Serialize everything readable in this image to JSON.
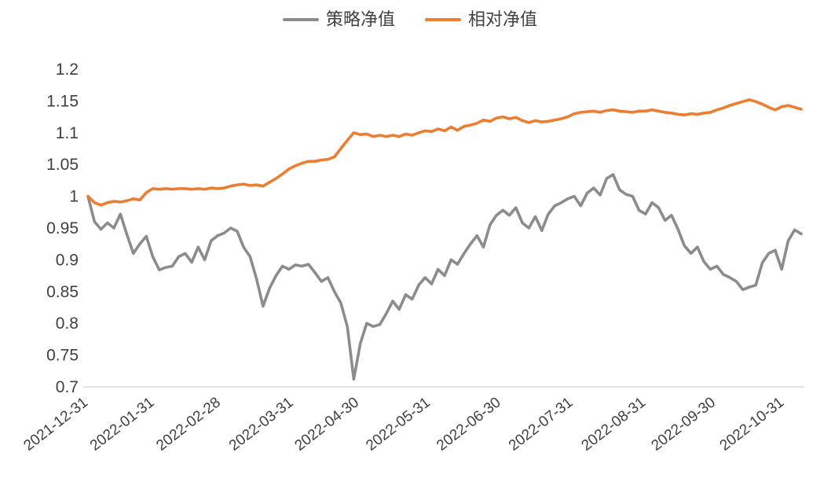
{
  "chart_data": {
    "type": "line",
    "title": "",
    "xlabel": "",
    "ylabel": "",
    "grid": false,
    "legend_position": "top-center",
    "ylim": [
      0.7,
      1.2
    ],
    "y_ticks": [
      {
        "value": 1.2,
        "label": "1.2"
      },
      {
        "value": 1.15,
        "label": "1.15"
      },
      {
        "value": 1.1,
        "label": "1.1"
      },
      {
        "value": 1.05,
        "label": "1.05"
      },
      {
        "value": 1.0,
        "label": "1"
      },
      {
        "value": 0.95,
        "label": "0.95"
      },
      {
        "value": 0.9,
        "label": "0.9"
      },
      {
        "value": 0.85,
        "label": "0.85"
      },
      {
        "value": 0.8,
        "label": "0.8"
      },
      {
        "value": 0.75,
        "label": "0.75"
      },
      {
        "value": 0.7,
        "label": "0.7"
      }
    ],
    "x_ticks": [
      {
        "pos": 0.001,
        "label": "2021-12-31"
      },
      {
        "pos": 0.094,
        "label": "2022-01-31"
      },
      {
        "pos": 0.187,
        "label": "2022-02-28"
      },
      {
        "pos": 0.289,
        "label": "2022-03-31"
      },
      {
        "pos": 0.381,
        "label": "2022-04-30"
      },
      {
        "pos": 0.481,
        "label": "2022-05-31"
      },
      {
        "pos": 0.58,
        "label": "2022-06-30"
      },
      {
        "pos": 0.681,
        "label": "2022-07-31"
      },
      {
        "pos": 0.783,
        "label": "2022-08-31"
      },
      {
        "pos": 0.881,
        "label": "2022-09-30"
      },
      {
        "pos": 0.977,
        "label": "2022-10-31"
      }
    ],
    "series": [
      {
        "name": "策略净值",
        "key": "strategy-nav",
        "color": "#8c8c8c",
        "values": [
          1.0,
          0.96,
          0.948,
          0.958,
          0.95,
          0.972,
          0.94,
          0.91,
          0.925,
          0.937,
          0.905,
          0.884,
          0.888,
          0.89,
          0.905,
          0.91,
          0.896,
          0.92,
          0.9,
          0.93,
          0.938,
          0.942,
          0.95,
          0.945,
          0.92,
          0.905,
          0.87,
          0.827,
          0.855,
          0.875,
          0.89,
          0.885,
          0.892,
          0.89,
          0.893,
          0.88,
          0.866,
          0.872,
          0.85,
          0.832,
          0.795,
          0.712,
          0.768,
          0.8,
          0.795,
          0.798,
          0.815,
          0.835,
          0.822,
          0.845,
          0.838,
          0.86,
          0.872,
          0.862,
          0.885,
          0.875,
          0.9,
          0.893,
          0.91,
          0.925,
          0.938,
          0.92,
          0.955,
          0.97,
          0.978,
          0.97,
          0.982,
          0.958,
          0.95,
          0.968,
          0.946,
          0.972,
          0.985,
          0.99,
          0.996,
          1.0,
          0.985,
          1.005,
          1.013,
          1.002,
          1.028,
          1.034,
          1.01,
          1.003,
          1.0,
          0.978,
          0.972,
          0.99,
          0.982,
          0.962,
          0.97,
          0.948,
          0.922,
          0.91,
          0.92,
          0.897,
          0.885,
          0.89,
          0.877,
          0.872,
          0.866,
          0.853,
          0.857,
          0.86,
          0.895,
          0.91,
          0.915,
          0.885,
          0.93,
          0.947,
          0.941
        ]
      },
      {
        "name": "相对净值",
        "key": "relative-nav",
        "color": "#ed7d31",
        "values": [
          1.0,
          0.99,
          0.986,
          0.99,
          0.992,
          0.991,
          0.993,
          0.996,
          0.994,
          1.006,
          1.012,
          1.011,
          1.012,
          1.011,
          1.012,
          1.012,
          1.011,
          1.012,
          1.011,
          1.013,
          1.012,
          1.013,
          1.016,
          1.018,
          1.019,
          1.017,
          1.018,
          1.016,
          1.022,
          1.028,
          1.035,
          1.043,
          1.048,
          1.052,
          1.055,
          1.055,
          1.057,
          1.058,
          1.062,
          1.075,
          1.088,
          1.1,
          1.097,
          1.098,
          1.094,
          1.096,
          1.094,
          1.096,
          1.094,
          1.098,
          1.096,
          1.1,
          1.103,
          1.102,
          1.106,
          1.103,
          1.109,
          1.104,
          1.11,
          1.112,
          1.115,
          1.12,
          1.118,
          1.123,
          1.125,
          1.122,
          1.124,
          1.119,
          1.116,
          1.119,
          1.117,
          1.118,
          1.12,
          1.122,
          1.125,
          1.13,
          1.132,
          1.133,
          1.134,
          1.132,
          1.135,
          1.136,
          1.134,
          1.133,
          1.132,
          1.134,
          1.134,
          1.136,
          1.134,
          1.132,
          1.131,
          1.129,
          1.128,
          1.13,
          1.129,
          1.131,
          1.132,
          1.136,
          1.139,
          1.143,
          1.146,
          1.149,
          1.152,
          1.149,
          1.145,
          1.14,
          1.136,
          1.141,
          1.143,
          1.14,
          1.137
        ]
      }
    ],
    "axis_color": "#d9d9d9",
    "tick_label_color": "#404040"
  }
}
